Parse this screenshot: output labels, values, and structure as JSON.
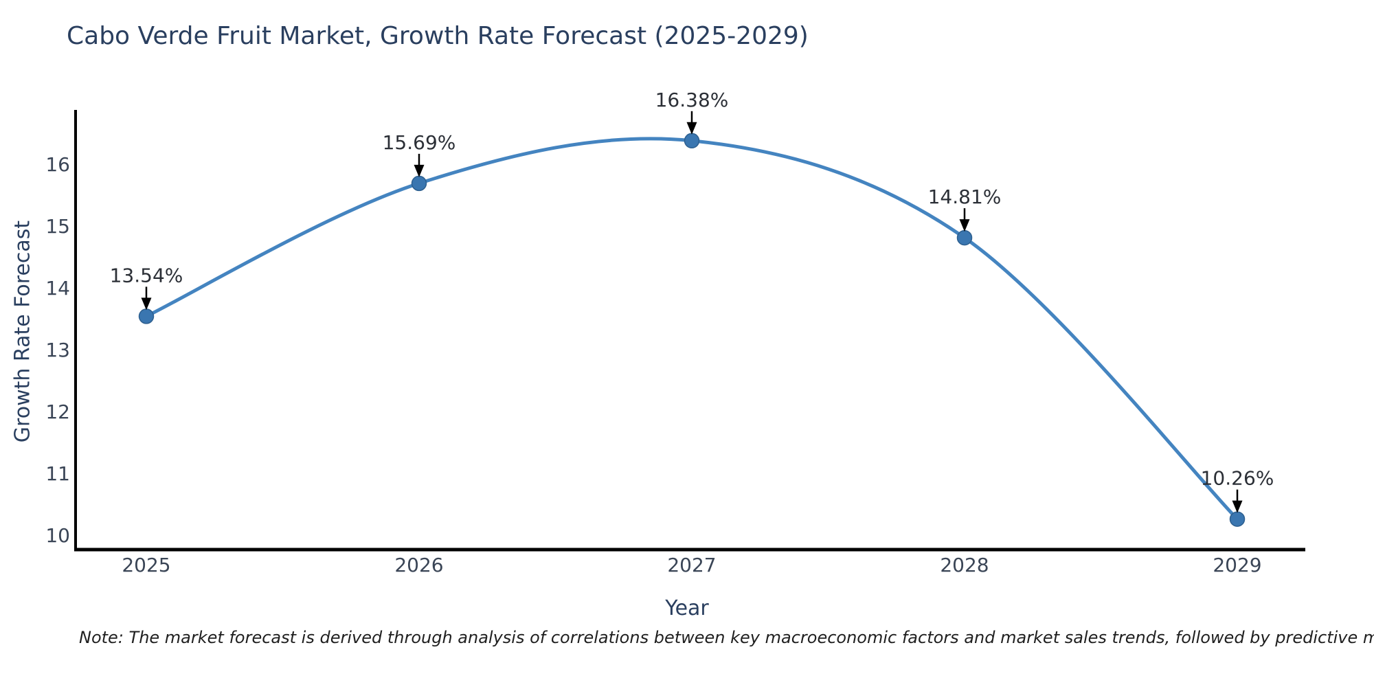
{
  "title": "Cabo Verde Fruit Market, Growth Rate Forecast (2025-2029)",
  "note": "Note: The market forecast is derived through analysis of correlations between key macroeconomic factors and market sales trends, followed by predictive modeling to project future sales",
  "chart_data": {
    "type": "line",
    "title": "Cabo Verde Fruit Market, Growth Rate Forecast (2025-2029)",
    "xlabel": "Year",
    "ylabel": "Growth Rate Forecast",
    "x": [
      2025,
      2026,
      2027,
      2028,
      2029
    ],
    "series": [
      {
        "name": "Growth Rate Forecast",
        "values": [
          13.54,
          15.69,
          16.38,
          14.81,
          10.26
        ]
      }
    ],
    "point_labels": [
      "13.54%",
      "15.69%",
      "16.38%",
      "14.81%",
      "10.26%"
    ],
    "yticks": [
      10,
      11,
      12,
      13,
      14,
      15,
      16
    ],
    "ylim": [
      9.77,
      17.1
    ],
    "grid": false,
    "legend_position": "none",
    "smooth": true,
    "line_color": "#4484c0",
    "marker_color": "#3a76b0",
    "marker_edge_color": "#2d5f8f",
    "axis_color": "#000000",
    "tick_color": "#3a4556",
    "annotation_color": "#2b2f36",
    "title_color": "#2a3f5f"
  }
}
